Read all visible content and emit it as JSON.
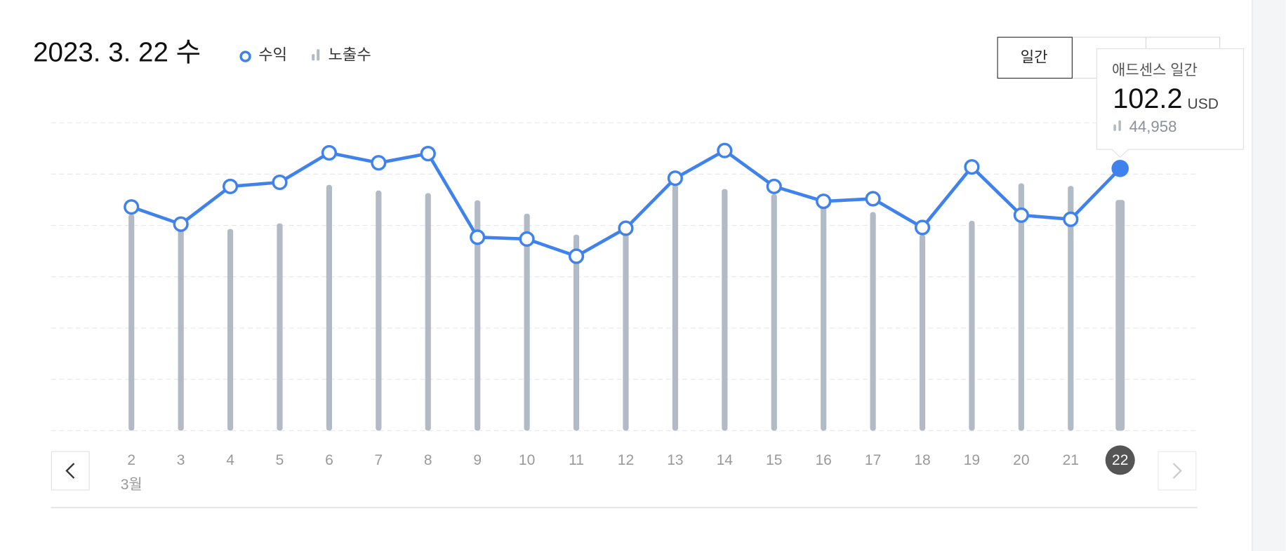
{
  "title": "2023. 3. 22 수",
  "buttons": [
    "일간"
  ],
  "chart_data": {
    "type": "combo",
    "categories": [
      "2",
      "3",
      "4",
      "5",
      "6",
      "7",
      "8",
      "9",
      "10",
      "11",
      "12",
      "13",
      "14",
      "15",
      "16",
      "17",
      "18",
      "19",
      "20",
      "21",
      "22"
    ],
    "month_label": "3월",
    "series": [
      {
        "name": "수익",
        "type": "line",
        "color": "#3f82ee",
        "values": [
          87.2,
          80.5,
          95.2,
          96.8,
          108.3,
          104.4,
          108.0,
          75.4,
          74.7,
          68.0,
          78.9,
          98.4,
          109.2,
          95.2,
          89.4,
          90.4,
          79.2,
          102.8,
          84.0,
          82.4,
          102.2
        ]
      },
      {
        "name": "노출수",
        "type": "bar",
        "axis": "y2",
        "color": "#b1bac5",
        "values": [
          42200,
          41500,
          39300,
          40400,
          47900,
          46800,
          46300,
          44900,
          42300,
          38200,
          38500,
          47900,
          47100,
          46100,
          44100,
          42600,
          38200,
          40900,
          48200,
          47700,
          44958
        ],
        "value_labels": [
          null,
          null,
          null,
          null,
          null,
          null,
          null,
          null,
          null,
          null,
          null,
          null,
          null,
          null,
          null,
          null,
          null,
          null,
          null,
          null,
          "44,958"
        ]
      }
    ],
    "ylim": [
      0,
      120
    ],
    "yticks": [
      0,
      20,
      40,
      60,
      80,
      100,
      120
    ],
    "y2lim": [
      0,
      60000
    ],
    "grid": true,
    "selected": 20,
    "tooltip": {
      "title": "애드센스 일간",
      "unit": "USD"
    }
  }
}
